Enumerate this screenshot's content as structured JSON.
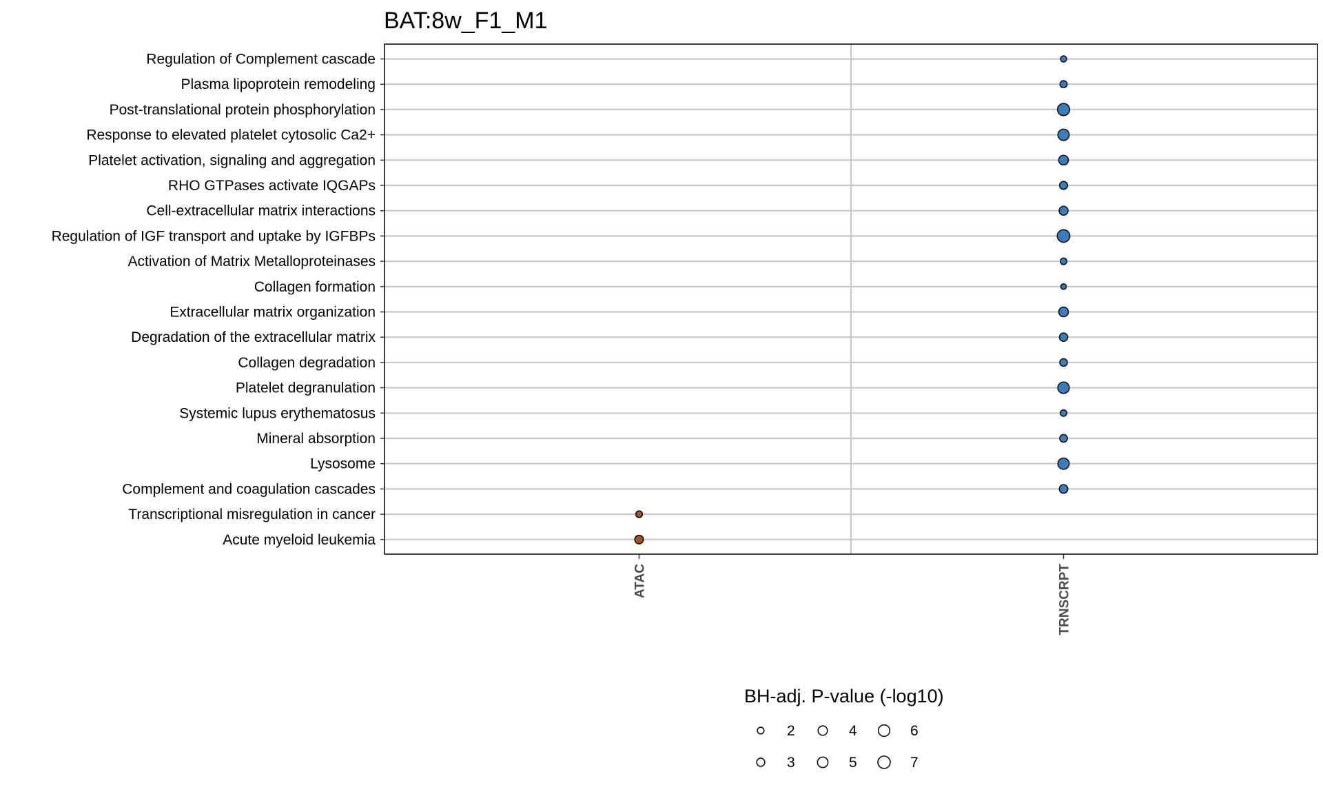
{
  "chart_data": {
    "type": "scatter",
    "title": "BAT:8w_F1_M1",
    "xlabel": "",
    "ylabel": "",
    "categories_x": [
      "ATAC",
      "TRNSCRPT"
    ],
    "categories_y": [
      "Regulation of Complement cascade",
      "Plasma lipoprotein remodeling",
      "Post-translational protein phosphorylation",
      "Response to elevated platelet cytosolic Ca2+",
      "Platelet activation, signaling and aggregation",
      "RHO GTPases activate IQGAPs",
      "Cell-extracellular matrix interactions",
      "Regulation of IGF transport and uptake by IGFBPs",
      "Activation of Matrix Metalloproteinases",
      "Collagen formation",
      "Extracellular matrix organization",
      "Degradation of the extracellular matrix",
      "Collagen degradation",
      "Platelet degranulation ",
      "Systemic lupus erythematosus",
      "Mineral absorption",
      "Lysosome",
      "Complement and coagulation cascades",
      "Transcriptional misregulation in cancer",
      "Acute myeloid leukemia"
    ],
    "points": [
      {
        "x": "TRNSCRPT",
        "y": "Regulation of Complement cascade",
        "value": 1.7
      },
      {
        "x": "TRNSCRPT",
        "y": "Plasma lipoprotein remodeling",
        "value": 2.3
      },
      {
        "x": "TRNSCRPT",
        "y": "Post-translational protein phosphorylation",
        "value": 6.7
      },
      {
        "x": "TRNSCRPT",
        "y": "Response to elevated platelet cytosolic Ca2+",
        "value": 5.8
      },
      {
        "x": "TRNSCRPT",
        "y": "Platelet activation, signaling and aggregation",
        "value": 4.3
      },
      {
        "x": "TRNSCRPT",
        "y": "RHO GTPases activate IQGAPs",
        "value": 2.9
      },
      {
        "x": "TRNSCRPT",
        "y": "Cell-extracellular matrix interactions",
        "value": 3.6
      },
      {
        "x": "TRNSCRPT",
        "y": "Regulation of IGF transport and uptake by IGFBPs",
        "value": 7.2
      },
      {
        "x": "TRNSCRPT",
        "y": "Activation of Matrix Metalloproteinases",
        "value": 1.9
      },
      {
        "x": "TRNSCRPT",
        "y": "Collagen formation",
        "value": 1.4
      },
      {
        "x": "TRNSCRPT",
        "y": "Extracellular matrix organization",
        "value": 4.2
      },
      {
        "x": "TRNSCRPT",
        "y": "Degradation of the extracellular matrix",
        "value": 3.1
      },
      {
        "x": "TRNSCRPT",
        "y": "Collagen degradation",
        "value": 2.6
      },
      {
        "x": "TRNSCRPT",
        "y": "Platelet degranulation ",
        "value": 6.0
      },
      {
        "x": "TRNSCRPT",
        "y": "Systemic lupus erythematosus",
        "value": 1.9
      },
      {
        "x": "TRNSCRPT",
        "y": "Mineral absorption",
        "value": 2.7
      },
      {
        "x": "TRNSCRPT",
        "y": "Lysosome",
        "value": 5.8
      },
      {
        "x": "TRNSCRPT",
        "y": "Complement and coagulation cascades",
        "value": 3.3
      },
      {
        "x": "ATAC",
        "y": "Transcriptional misregulation in cancer",
        "value": 2.0
      },
      {
        "x": "ATAC",
        "y": "Acute myeloid leukemia",
        "value": 3.4
      }
    ],
    "colors": {
      "ATAC": "#a5522a",
      "TRNSCRPT": "#3a7dbd"
    },
    "grid": true,
    "legend": {
      "title": "BH-adj. P-value (-log10)",
      "placement": "bottom",
      "entries": [
        2,
        3,
        4,
        5,
        6,
        7
      ]
    }
  }
}
